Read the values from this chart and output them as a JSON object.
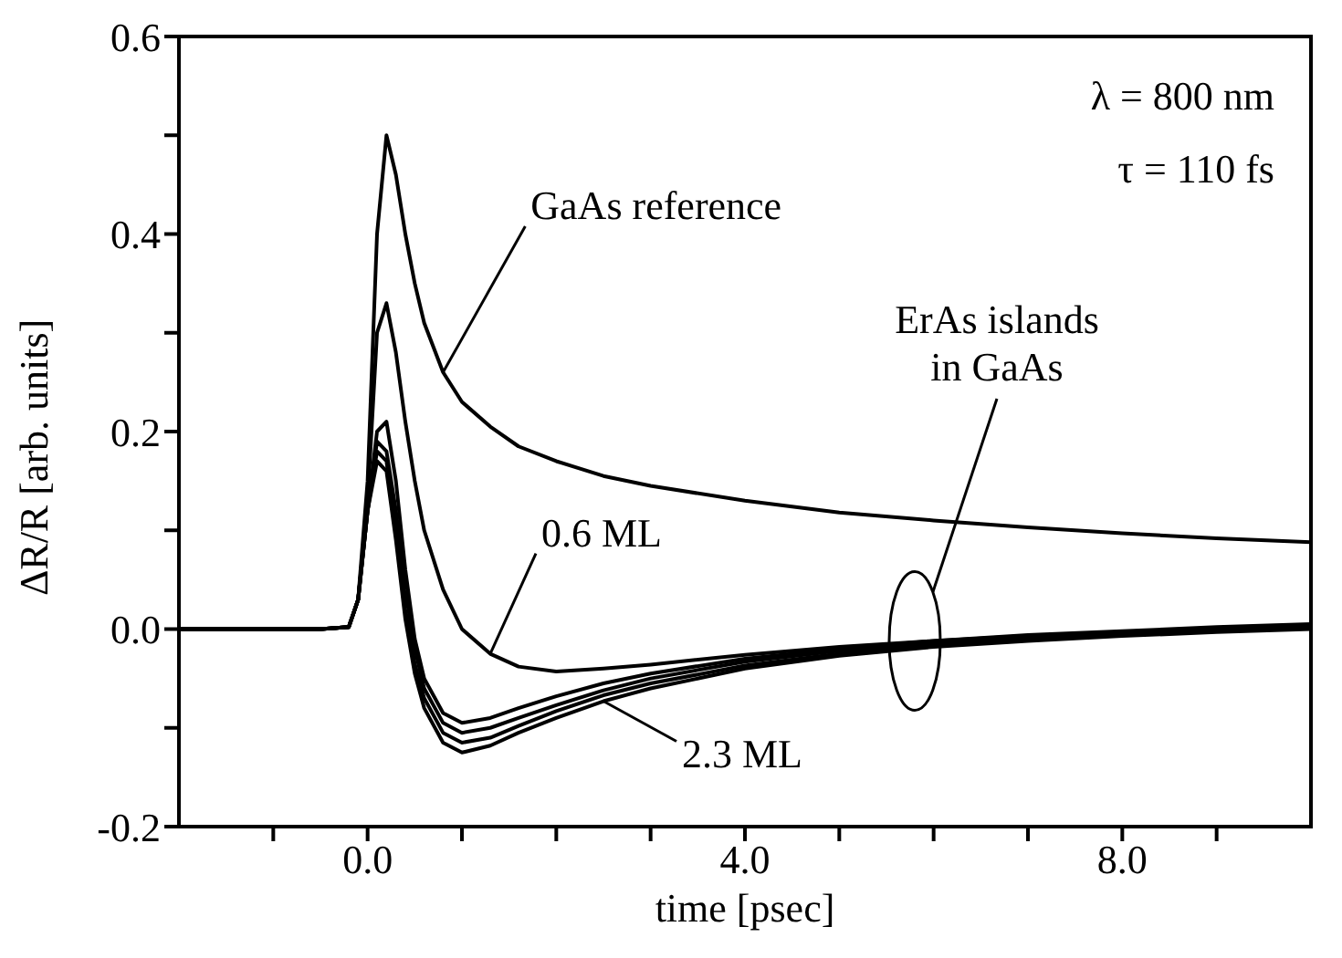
{
  "chart_data": {
    "type": "line",
    "xlabel": "time [psec]",
    "ylabel": "ΔR/R [arb. units]",
    "x": [
      -2,
      -1.5,
      -1,
      -0.5,
      -0.2,
      -0.1,
      0,
      0.1,
      0.2,
      0.3,
      0.4,
      0.5,
      0.6,
      0.8,
      1.0,
      1.3,
      1.6,
      2,
      2.5,
      3,
      4,
      5,
      6,
      7,
      8,
      9,
      10
    ],
    "series": [
      {
        "color": "#000000",
        "values": [
          0,
          0,
          0,
          0,
          0.002,
          0.03,
          0.15,
          0.4,
          0.5,
          0.46,
          0.4,
          0.35,
          0.31,
          0.26,
          0.23,
          0.205,
          0.185,
          0.17,
          0.155,
          0.145,
          0.13,
          0.118,
          0.11,
          0.103,
          0.097,
          0.092,
          0.088
        ]
      },
      {
        "color": "#000000",
        "values": [
          0,
          0,
          0,
          0,
          0.002,
          0.03,
          0.13,
          0.3,
          0.33,
          0.28,
          0.21,
          0.15,
          0.1,
          0.04,
          0.0,
          -0.025,
          -0.038,
          -0.043,
          -0.04,
          -0.036,
          -0.026,
          -0.018,
          -0.012,
          -0.007,
          -0.003,
          0.0,
          0.003
        ]
      },
      {
        "color": "#000000",
        "values": [
          0,
          0,
          0,
          0,
          0.002,
          0.03,
          0.12,
          0.2,
          0.21,
          0.15,
          0.06,
          -0.01,
          -0.05,
          -0.085,
          -0.095,
          -0.09,
          -0.08,
          -0.068,
          -0.055,
          -0.045,
          -0.03,
          -0.02,
          -0.012,
          -0.006,
          -0.002,
          0.002,
          0.005
        ]
      },
      {
        "color": "#000000",
        "values": [
          0,
          0,
          0,
          0,
          0.002,
          0.03,
          0.12,
          0.19,
          0.18,
          0.12,
          0.04,
          -0.02,
          -0.06,
          -0.095,
          -0.105,
          -0.1,
          -0.09,
          -0.077,
          -0.062,
          -0.05,
          -0.033,
          -0.022,
          -0.014,
          -0.008,
          -0.003,
          0.0,
          0.003
        ]
      },
      {
        "color": "#000000",
        "values": [
          0,
          0,
          0,
          0,
          0.002,
          0.03,
          0.12,
          0.18,
          0.17,
          0.1,
          0.02,
          -0.035,
          -0.07,
          -0.105,
          -0.115,
          -0.11,
          -0.098,
          -0.083,
          -0.067,
          -0.055,
          -0.037,
          -0.025,
          -0.016,
          -0.01,
          -0.005,
          -0.002,
          0.001
        ]
      },
      {
        "color": "#000000",
        "values": [
          0,
          0,
          0,
          0,
          0.002,
          0.03,
          0.12,
          0.17,
          0.16,
          0.09,
          0.01,
          -0.045,
          -0.08,
          -0.115,
          -0.125,
          -0.118,
          -0.105,
          -0.09,
          -0.073,
          -0.06,
          -0.04,
          -0.027,
          -0.018,
          -0.012,
          -0.007,
          -0.003,
          0.0
        ]
      }
    ],
    "xlim": [
      -2,
      10
    ],
    "xticks": [
      {
        "value": -1,
        "label": null
      },
      {
        "value": 0,
        "label": "0.0"
      },
      {
        "value": 1,
        "label": null
      },
      {
        "value": 2,
        "label": null
      },
      {
        "value": 3,
        "label": null
      },
      {
        "value": 4,
        "label": "4.0"
      },
      {
        "value": 5,
        "label": null
      },
      {
        "value": 6,
        "label": null
      },
      {
        "value": 7,
        "label": null
      },
      {
        "value": 8,
        "label": "8.0"
      },
      {
        "value": 9,
        "label": null
      }
    ],
    "ylim": [
      -0.2,
      0.6
    ],
    "yticks": [
      {
        "value": -0.2,
        "label": "-0.2"
      },
      {
        "value": -0.1,
        "label": null
      },
      {
        "value": 0,
        "label": "0.0"
      },
      {
        "value": 0.1,
        "label": null
      },
      {
        "value": 0.2,
        "label": "0.2"
      },
      {
        "value": 0.3,
        "label": null
      },
      {
        "value": 0.4,
        "label": "0.4"
      },
      {
        "value": 0.5,
        "label": null
      },
      {
        "value": 0.6,
        "label": "0.6"
      }
    ],
    "grid": false,
    "legend": false,
    "marker": "none",
    "line_style": "solid",
    "annotations": [
      "λ = 800 nm",
      "τ = 110 fs",
      "ErAs islands in GaAs",
      {
        "text": "GaAs reference",
        "x": 0.8,
        "y": 0.26
      },
      {
        "text": "0.6 ML",
        "x": 1.3,
        "y": -0.025
      },
      {
        "text": "2.3 ML",
        "x": 2.5,
        "y": -0.073
      }
    ]
  }
}
